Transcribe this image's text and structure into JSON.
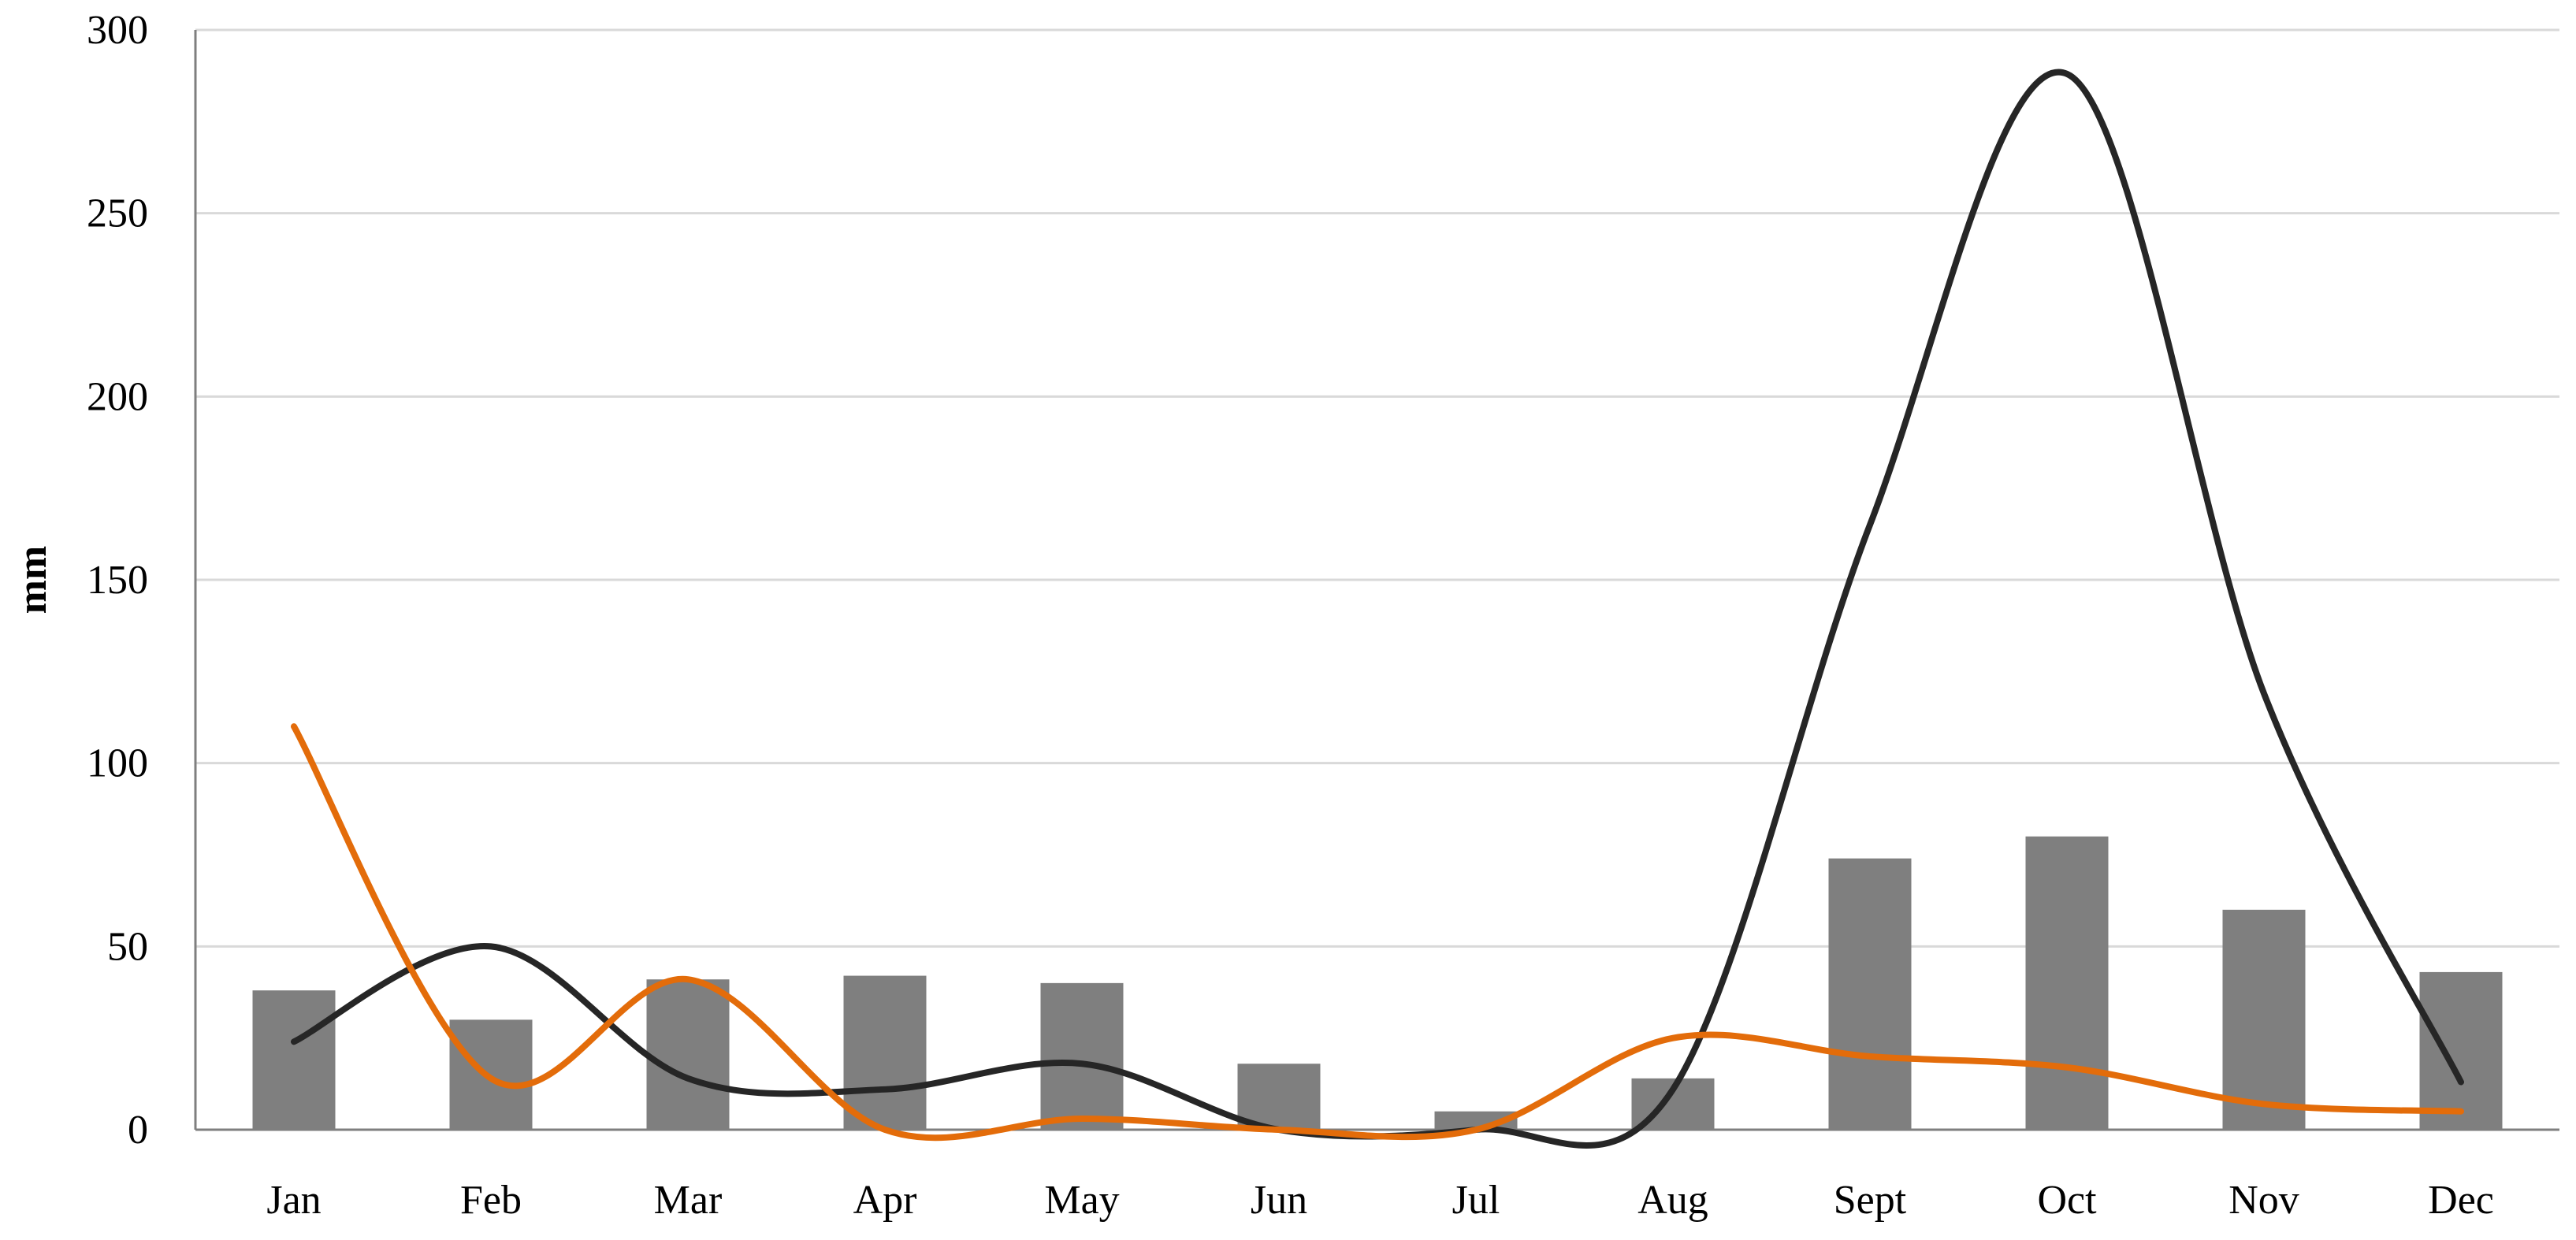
{
  "chart_data": {
    "type": "bar",
    "title": "",
    "xlabel": "",
    "ylabel": "mm",
    "ylim": [
      0,
      300
    ],
    "yticks": [
      0,
      50,
      100,
      150,
      200,
      250,
      300
    ],
    "grid": true,
    "legend": "none",
    "categories": [
      "Jan",
      "Feb",
      "Mar",
      "Apr",
      "May",
      "Jun",
      "Jul",
      "Aug",
      "Sept",
      "Oct",
      "Nov",
      "Dec"
    ],
    "series": [
      {
        "type": "bar",
        "color": "#7f7f7f",
        "values": [
          38,
          30,
          41,
          42,
          40,
          18,
          5,
          14,
          74,
          80,
          60,
          43
        ]
      },
      {
        "type": "line",
        "color": "#262626",
        "values": [
          24,
          50,
          14,
          11,
          18,
          0,
          0,
          11,
          165,
          288,
          119,
          13
        ]
      },
      {
        "type": "line",
        "color": "#e36c0a",
        "values": [
          110,
          14,
          41,
          0,
          3,
          0,
          0,
          25,
          20,
          17,
          7,
          5
        ]
      }
    ]
  }
}
